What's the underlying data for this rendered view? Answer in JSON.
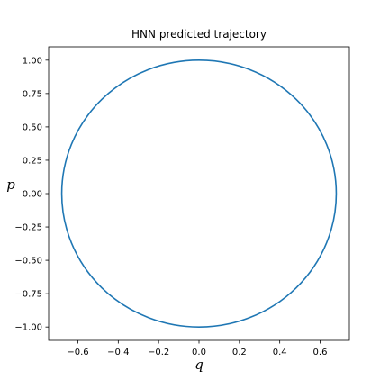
{
  "chart_data": {
    "type": "line",
    "title": "HNN predicted trajectory",
    "xlabel": "q",
    "ylabel": "p",
    "xlim": [
      -0.745,
      0.745
    ],
    "ylim": [
      -1.1,
      1.1
    ],
    "xticks": [
      -0.6,
      -0.4,
      -0.2,
      0.0,
      0.2,
      0.4,
      0.6
    ],
    "xtick_labels": [
      "−0.6",
      "−0.4",
      "−0.2",
      "0.0",
      "0.2",
      "0.4",
      "0.6"
    ],
    "yticks": [
      -1.0,
      -0.75,
      -0.5,
      -0.25,
      0.0,
      0.25,
      0.5,
      0.75,
      1.0
    ],
    "ytick_labels": [
      "−1.00",
      "−0.75",
      "−0.50",
      "−0.25",
      "0.00",
      "0.25",
      "0.50",
      "0.75",
      "1.00"
    ],
    "grid": false,
    "series": [
      {
        "color": "#1f77b4",
        "shape": "ellipse",
        "center": [
          0.0,
          0.0
        ],
        "q_semi_axis": 0.68,
        "p_semi_axis": 1.0
      }
    ]
  }
}
